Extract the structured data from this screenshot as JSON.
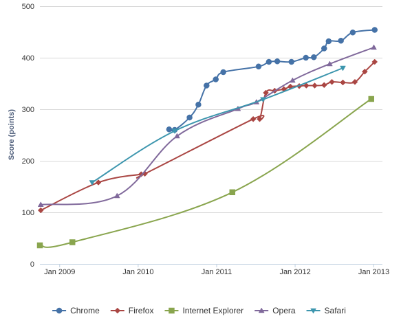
{
  "chart_data": {
    "type": "line",
    "title": "",
    "xlabel": "",
    "ylabel": "Score (points)",
    "ylim": [
      0,
      500
    ],
    "yticks": [
      0,
      100,
      200,
      300,
      400,
      500
    ],
    "xlim": [
      "2008-10-01",
      "2013-02-10"
    ],
    "xticks": [
      {
        "label": "Jan 2009",
        "date": "2009-01-01"
      },
      {
        "label": "Jan 2010",
        "date": "2010-01-01"
      },
      {
        "label": "Jan 2011",
        "date": "2011-01-01"
      },
      {
        "label": "Jan 2012",
        "date": "2012-01-01"
      },
      {
        "label": "Jan 2013",
        "date": "2013-01-01"
      }
    ],
    "grid": true,
    "legend": "bottom",
    "series": [
      {
        "name": "Chrome",
        "color": "#4572a7",
        "marker": "circle",
        "points": [
          [
            "2010-05-25",
            261
          ],
          [
            "2010-06-20",
            260
          ],
          [
            "2010-08-28",
            284
          ],
          [
            "2010-10-08",
            309
          ],
          [
            "2010-11-15",
            346
          ],
          [
            "2010-12-28",
            358
          ],
          [
            "2011-02-01",
            372
          ],
          [
            "2011-07-15",
            383
          ],
          [
            "2011-09-01",
            392
          ],
          [
            "2011-10-10",
            393
          ],
          [
            "2011-12-15",
            392
          ],
          [
            "2012-02-20",
            400
          ],
          [
            "2012-03-28",
            401
          ],
          [
            "2012-05-15",
            418
          ],
          [
            "2012-06-05",
            432
          ],
          [
            "2012-08-01",
            433
          ],
          [
            "2012-09-25",
            449
          ],
          [
            "2013-01-05",
            454
          ]
        ]
      },
      {
        "name": "Firefox",
        "color": "#aa4643",
        "marker": "diamond",
        "points": [
          [
            "2008-10-05",
            104
          ],
          [
            "2009-06-30",
            158
          ],
          [
            "2010-01-15",
            174
          ],
          [
            "2010-02-01",
            175
          ],
          [
            "2011-06-20",
            281
          ],
          [
            "2011-07-20",
            281
          ],
          [
            "2011-08-18",
            332
          ],
          [
            "2011-09-28",
            336
          ],
          [
            "2011-11-10",
            339
          ],
          [
            "2011-12-10",
            344
          ],
          [
            "2012-01-20",
            345
          ],
          [
            "2012-02-22",
            346
          ],
          [
            "2012-04-01",
            346
          ],
          [
            "2012-05-15",
            347
          ],
          [
            "2012-06-20",
            353
          ],
          [
            "2012-08-10",
            352
          ],
          [
            "2012-10-05",
            353
          ],
          [
            "2012-11-20",
            373
          ],
          [
            "2013-01-05",
            392
          ]
        ]
      },
      {
        "name": "Internet Explorer",
        "color": "#89a54e",
        "marker": "square",
        "points": [
          [
            "2008-10-01",
            36
          ],
          [
            "2009-03-01",
            42
          ],
          [
            "2011-03-15",
            139
          ],
          [
            "2012-12-20",
            320
          ]
        ]
      },
      {
        "name": "Opera",
        "color": "#80699b",
        "marker": "triangle",
        "points": [
          [
            "2008-10-05",
            115
          ],
          [
            "2009-09-25",
            132
          ],
          [
            "2010-07-01",
            248
          ],
          [
            "2011-04-10",
            301
          ],
          [
            "2011-07-05",
            314
          ],
          [
            "2011-12-20",
            356
          ],
          [
            "2012-06-10",
            388
          ],
          [
            "2013-01-01",
            420
          ]
        ]
      },
      {
        "name": "Safari",
        "color": "#3d96ae",
        "marker": "triangle-down",
        "points": [
          [
            "2009-06-01",
            158
          ],
          [
            "2010-06-20",
            258
          ],
          [
            "2011-08-05",
            319
          ],
          [
            "2012-08-10",
            380
          ]
        ]
      }
    ]
  }
}
